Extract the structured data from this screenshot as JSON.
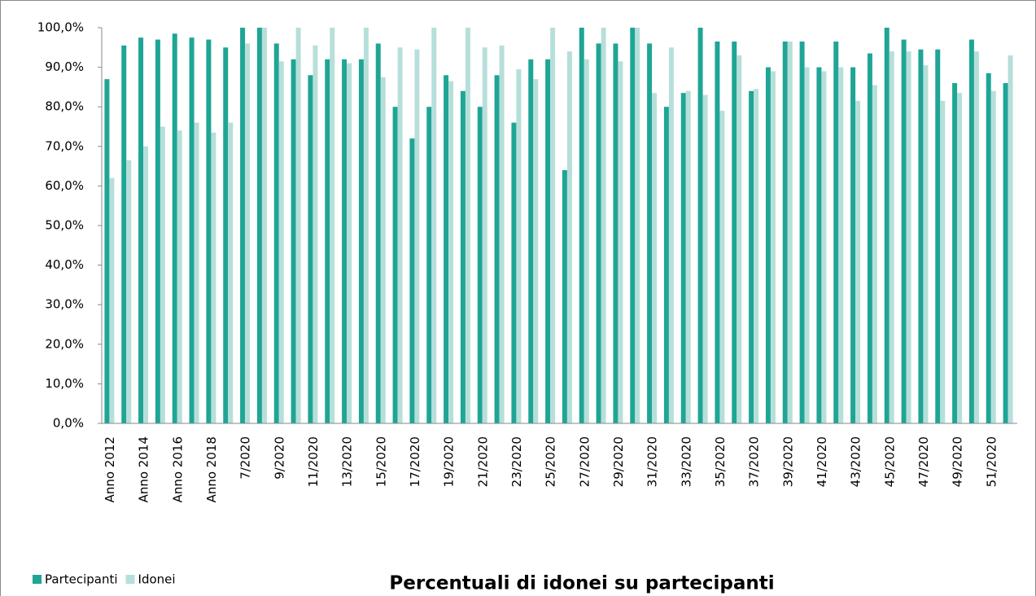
{
  "chart_data": {
    "type": "bar",
    "title": "Percentuali di idonei su partecipanti",
    "categories": [
      "Anno 2012",
      null,
      "Anno 2014",
      null,
      "Anno 2016",
      null,
      "Anno 2018",
      null,
      "7/2020",
      null,
      "9/2020",
      null,
      "11/2020",
      null,
      "13/2020",
      null,
      "15/2020",
      null,
      "17/2020",
      null,
      "19/2020",
      null,
      "21/2020",
      null,
      "23/2020",
      null,
      "25/2020",
      null,
      "27/2020",
      null,
      "29/2020",
      null,
      "31/2020",
      null,
      "33/2020",
      null,
      "35/2020",
      null,
      "37/2020",
      null,
      "39/2020",
      null,
      "41/2020",
      null,
      "43/2020",
      null,
      "45/2020",
      null,
      "47/2020",
      null,
      "49/2020",
      null,
      "51/2020",
      null
    ],
    "series": [
      {
        "name": "Partecipanti",
        "color": "#1fa596",
        "values": [
          87,
          95.5,
          97.5,
          97,
          98.5,
          97.5,
          97,
          95,
          100,
          100,
          96,
          92,
          88,
          92,
          92,
          92,
          96,
          80,
          72,
          80,
          88,
          84,
          80,
          88,
          76,
          92,
          92,
          64,
          100,
          96,
          96,
          100,
          96,
          80,
          83.5,
          100,
          96.5,
          96.5,
          84,
          90,
          96.5,
          96.5,
          90,
          96.5,
          90,
          93.5,
          100,
          97,
          94.5,
          94.5,
          86,
          97,
          88.5,
          86
        ]
      },
      {
        "name": "Idonei",
        "color": "#b7dfda",
        "values": [
          62,
          66.5,
          70,
          75,
          74,
          76,
          73.5,
          76,
          96,
          100,
          91.5,
          100,
          95.5,
          100,
          91,
          100,
          87.5,
          95,
          94.5,
          100,
          86.5,
          100,
          95,
          95.5,
          89.5,
          87,
          100,
          94,
          92,
          100,
          91.5,
          100,
          83.5,
          95,
          84,
          83,
          79,
          93,
          84.5,
          89,
          96.5,
          90,
          89,
          90,
          81.5,
          85.5,
          94,
          94,
          90.5,
          81.5,
          83.5,
          94,
          84,
          93
        ]
      }
    ],
    "ylim": [
      0,
      100
    ],
    "yticks": [
      {
        "value": 0,
        "label": "0,0%"
      },
      {
        "value": 10,
        "label": "10,0%"
      },
      {
        "value": 20,
        "label": "20,0%"
      },
      {
        "value": 30,
        "label": "30,0%"
      },
      {
        "value": 40,
        "label": "40,0%"
      },
      {
        "value": 50,
        "label": "50,0%"
      },
      {
        "value": 60,
        "label": "60,0%"
      },
      {
        "value": 70,
        "label": "70,0%"
      },
      {
        "value": 80,
        "label": "80,0%"
      },
      {
        "value": 90,
        "label": "90,0%"
      },
      {
        "value": 100,
        "label": "100,0%"
      }
    ],
    "grid": false,
    "legend": "bottom-left"
  }
}
